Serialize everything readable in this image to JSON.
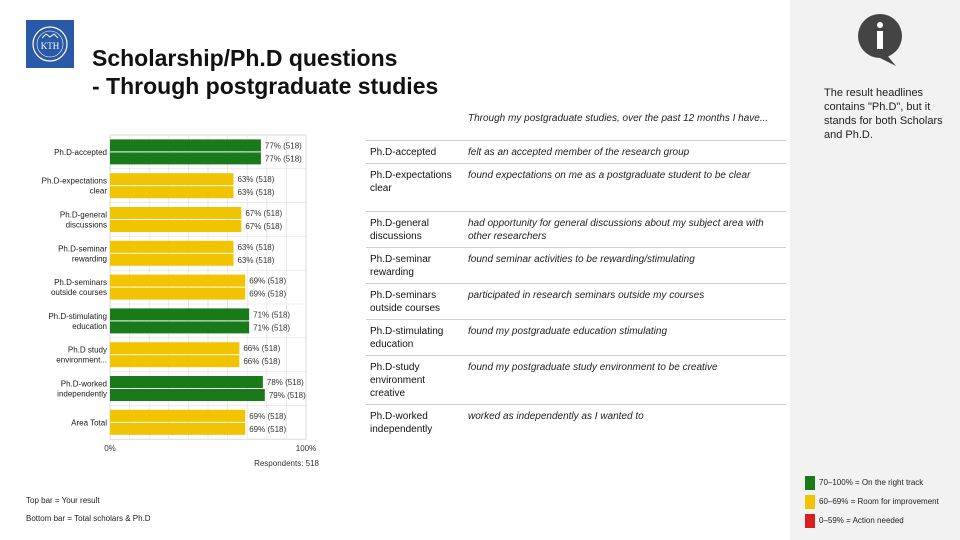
{
  "header": {
    "title_line1": "Scholarship/Ph.D questions",
    "title_line2": "- Through postgraduate studies",
    "logo_text": "KTH"
  },
  "sidebar": {
    "note": "The result headlines contains \"Ph.D\", but it stands for both Scholars and Ph.D."
  },
  "questions": {
    "intro": "Through my postgraduate studies, over the past 12 months I have...",
    "rows": [
      {
        "category": "Ph.D-accepted",
        "text": "felt as an accepted member of the research group"
      },
      {
        "category": "Ph.D-expectations clear",
        "text": "found expectations on me as a postgraduate student to be clear"
      },
      {
        "category": "Ph.D-general discussions",
        "text": "had opportunity for general discussions about my subject area with other researchers"
      },
      {
        "category": "Ph.D-seminar rewarding",
        "text": "found seminar activities to be rewarding/stimulating"
      },
      {
        "category": "Ph.D-seminars outside courses",
        "text": "participated in research seminars outside my courses"
      },
      {
        "category": "Ph.D-stimulating education",
        "text": "found my postgraduate education stimulating"
      },
      {
        "category": "Ph.D-study environment creative",
        "text": "found my postgraduate study environment to be creative"
      },
      {
        "category": "Ph.D-worked independently",
        "text": "worked as independently as I wanted to"
      }
    ]
  },
  "footer": {
    "top_bar": "Top bar = Your result",
    "bottom_bar": "Bottom bar = Total scholars & Ph.D"
  },
  "legend": [
    {
      "color": "#1a7a1a",
      "label": "70–100% = On the right track"
    },
    {
      "color": "#f0c400",
      "label": "60–69% = Room for improvement"
    },
    {
      "color": "#d81e1e",
      "label": "0–59% = Action needed"
    }
  ],
  "chart_data": {
    "type": "bar",
    "orientation": "horizontal",
    "categories": [
      [
        "Ph.D-accepted"
      ],
      [
        "Ph.D-expectations",
        "clear"
      ],
      [
        "Ph.D-general",
        "discussions"
      ],
      [
        "Ph.D-seminar",
        "rewarding"
      ],
      [
        "Ph.D-seminars",
        "outside courses"
      ],
      [
        "Ph.D-stimulating",
        "education"
      ],
      [
        "Ph.D study",
        "environment..."
      ],
      [
        "Ph.D-worked",
        "independently"
      ],
      [
        "Area Total"
      ]
    ],
    "series": [
      {
        "values": [
          77,
          63,
          67,
          63,
          69,
          71,
          66,
          78,
          69
        ],
        "labels": [
          "77% (518)",
          "63% (518)",
          "67% (518)",
          "63% (518)",
          "69% (518)",
          "71% (518)",
          "66% (518)",
          "78% (518)",
          "69% (518)"
        ]
      },
      {
        "values": [
          77,
          63,
          67,
          63,
          69,
          71,
          66,
          79,
          69
        ],
        "labels": [
          "77% (518)",
          "63% (518)",
          "67% (518)",
          "63% (518)",
          "69% (518)",
          "71% (518)",
          "66% (518)",
          "79% (518)",
          "69% (518)"
        ]
      }
    ],
    "xlim": [
      0,
      100
    ],
    "x_tick_labels": [
      "0%",
      "100%"
    ],
    "respondents": "Respondents: 518",
    "colors": {
      "green": "#1a7a1a",
      "yellow": "#f0c400",
      "red": "#d81e1e"
    },
    "thresholds": {
      "green_min": 70,
      "yellow_min": 60
    },
    "grid": true
  }
}
